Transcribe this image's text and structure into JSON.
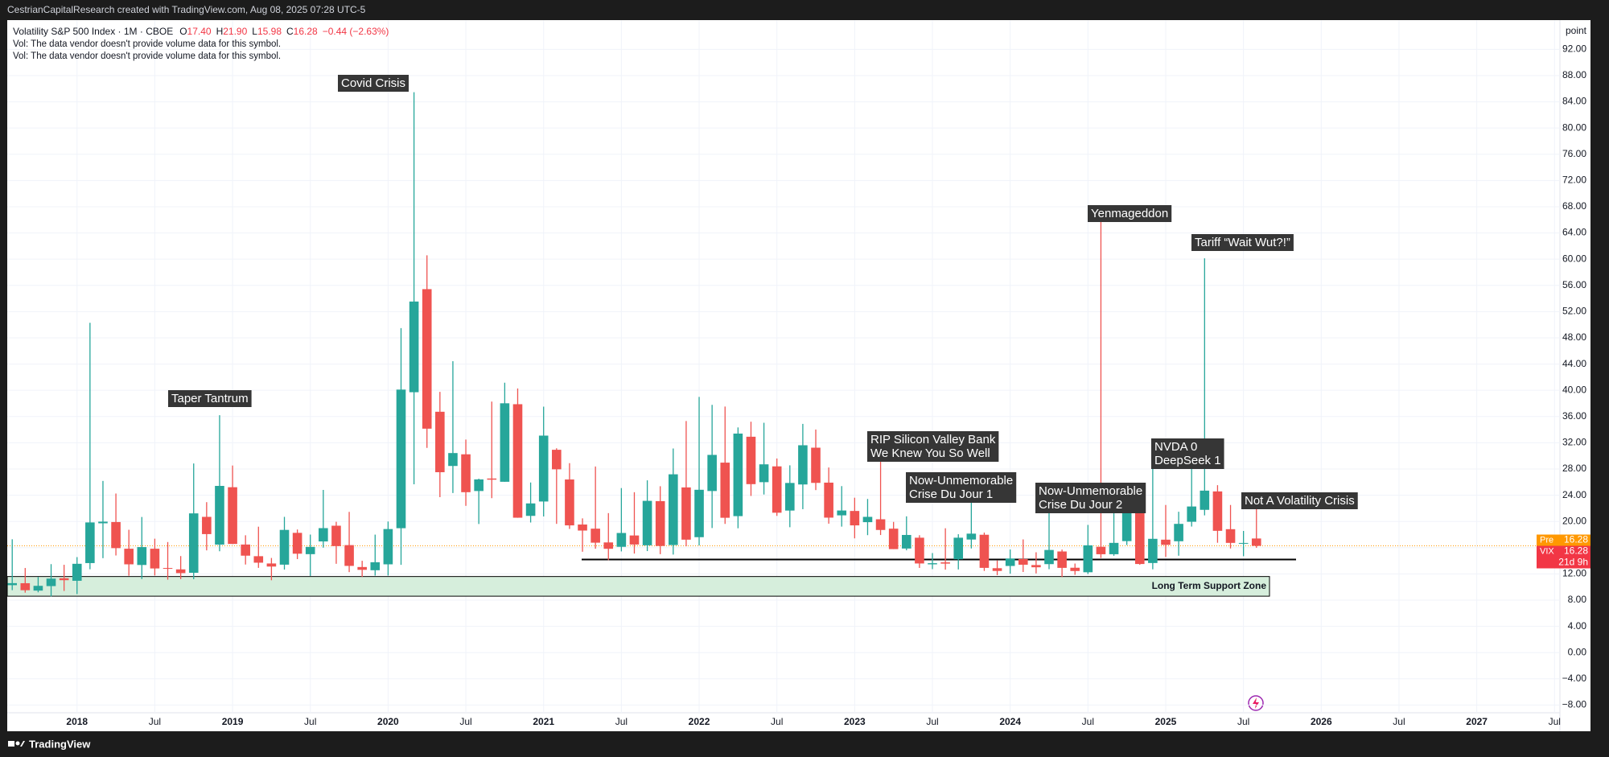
{
  "header": "CestrianCapitalResearch created with TradingView.com, Aug 08, 2025 07:28 UTC-5",
  "footer": "TradingView",
  "legend": {
    "symbol": "Volatility S&P 500 Index · 1M · CBOE",
    "items": [
      {
        "key": "O",
        "value": "17.40"
      },
      {
        "key": "H",
        "value": "21.90"
      },
      {
        "key": "L",
        "value": "15.98"
      },
      {
        "key": "C",
        "value": "16.28"
      }
    ],
    "change": "−0.44 (−2.63%)",
    "notes": [
      "Vol: The data vendor doesn't provide volume data for this symbol.",
      "Vol: The data vendor doesn't provide volume data for this symbol."
    ]
  },
  "chart_data": {
    "type": "candlestick",
    "y_unit": "point",
    "x": [
      "2017-08",
      "2017-09",
      "2017-10",
      "2017-11",
      "2017-12",
      "2018-01",
      "2018-02",
      "2018-03",
      "2018-04",
      "2018-05",
      "2018-06",
      "2018-07",
      "2018-08",
      "2018-09",
      "2018-10",
      "2018-11",
      "2018-12",
      "2019-01",
      "2019-02",
      "2019-03",
      "2019-04",
      "2019-05",
      "2019-06",
      "2019-07",
      "2019-08",
      "2019-09",
      "2019-10",
      "2019-11",
      "2019-12",
      "2020-01",
      "2020-02",
      "2020-03",
      "2020-04",
      "2020-05",
      "2020-06",
      "2020-07",
      "2020-08",
      "2020-09",
      "2020-10",
      "2020-11",
      "2020-12",
      "2021-01",
      "2021-02",
      "2021-03",
      "2021-04",
      "2021-05",
      "2021-06",
      "2021-07",
      "2021-08",
      "2021-09",
      "2021-10",
      "2021-11",
      "2021-12",
      "2022-01",
      "2022-02",
      "2022-03",
      "2022-04",
      "2022-05",
      "2022-06",
      "2022-07",
      "2022-08",
      "2022-09",
      "2022-10",
      "2022-11",
      "2022-12",
      "2023-01",
      "2023-02",
      "2023-03",
      "2023-04",
      "2023-05",
      "2023-06",
      "2023-07",
      "2023-08",
      "2023-09",
      "2023-10",
      "2023-11",
      "2023-12",
      "2024-01",
      "2024-02",
      "2024-03",
      "2024-04",
      "2024-05",
      "2024-06",
      "2024-07",
      "2024-08",
      "2024-09",
      "2024-10",
      "2024-11",
      "2024-12",
      "2025-01",
      "2025-02",
      "2025-03",
      "2025-04",
      "2025-05",
      "2025-06",
      "2025-07",
      "2025-08"
    ],
    "open": [
      10.28,
      10.58,
      9.45,
      10.14,
      11.34,
      10.95,
      13.65,
      19.72,
      19.91,
      15.84,
      13.36,
      15.84,
      12.9,
      12.69,
      12.17,
      20.7,
      16.47,
      25.22,
      16.48,
      14.7,
      13.59,
      13.41,
      18.26,
      15.01,
      16.95,
      19.35,
      16.39,
      13.05,
      12.56,
      13.46,
      18.97,
      39.71,
      55.43,
      36.73,
      28.46,
      30.24,
      24.64,
      26.55,
      26.05,
      37.88,
      20.85,
      23.04,
      30.93,
      26.4,
      19.53,
      18.9,
      16.8,
      16.13,
      17.86,
      16.36,
      23.1,
      16.4,
      25.19,
      17.6,
      24.64,
      28.97,
      20.81,
      32.92,
      25.99,
      28.4,
      21.66,
      25.64,
      31.25,
      25.92,
      20.93,
      21.6,
      19.89,
      20.33,
      18.9,
      15.87,
      17.52,
      13.46,
      13.76,
      14.23,
      17.24,
      17.97,
      12.87,
      13.21,
      14.27,
      13.35,
      13.49,
      15.42,
      12.94,
      12.25,
      16.14,
      15.0,
      17.0,
      23.2,
      13.66,
      17.22,
      16.98,
      19.95,
      21.77,
      24.58,
      18.82,
      16.68,
      17.4
    ],
    "high": [
      17.28,
      12.9,
      11.53,
      13.49,
      13.39,
      14.56,
      50.3,
      26.18,
      24.26,
      18.73,
      20.68,
      17.37,
      16.86,
      14.72,
      28.84,
      22.94,
      36.2,
      28.53,
      17.89,
      19.2,
      14.43,
      20.7,
      18.77,
      18.0,
      24.81,
      19.95,
      21.46,
      14.0,
      17.99,
      19.99,
      49.48,
      85.47,
      60.59,
      39.76,
      44.44,
      32.49,
      26.52,
      38.28,
      41.16,
      40.28,
      25.94,
      37.51,
      31.16,
      28.89,
      20.47,
      28.38,
      21.27,
      25.09,
      24.46,
      26.27,
      25.37,
      31.12,
      35.32,
      38.99,
      37.79,
      37.52,
      34.34,
      35.21,
      35.05,
      29.6,
      28.56,
      34.88,
      34.02,
      28.23,
      25.39,
      23.62,
      23.43,
      30.81,
      19.93,
      20.78,
      17.9,
      15.18,
      18.96,
      18.05,
      23.08,
      18.3,
      14.04,
      15.72,
      17.26,
      15.3,
      21.36,
      15.71,
      13.58,
      19.47,
      65.73,
      23.76,
      23.89,
      23.32,
      28.32,
      22.51,
      21.48,
      29.56,
      60.13,
      25.53,
      22.51,
      18.55,
      21.9
    ],
    "low": [
      9.52,
      9.14,
      9.19,
      8.56,
      9.4,
      8.92,
      12.71,
      14.4,
      14.81,
      11.72,
      11.22,
      11.76,
      11.12,
      11.21,
      11.19,
      15.59,
      15.45,
      16.55,
      13.43,
      12.92,
      11.03,
      12.66,
      14.26,
      11.69,
      16.0,
      13.54,
      12.27,
      11.55,
      11.74,
      11.75,
      13.38,
      25.67,
      31.22,
      23.7,
      24.33,
      22.38,
      19.61,
      23.55,
      26.05,
      20.56,
      19.84,
      20.76,
      19.63,
      18.86,
      15.38,
      15.84,
      14.1,
      15.43,
      15.1,
      15.48,
      15.01,
      14.95,
      16.21,
      16.34,
      19.0,
      19.63,
      18.96,
      23.89,
      24.11,
      20.85,
      19.12,
      21.87,
      24.78,
      19.66,
      19.21,
      17.42,
      17.91,
      17.93,
      15.78,
      15.6,
      12.91,
      12.73,
      12.65,
      12.68,
      15.88,
      12.45,
      11.81,
      12.03,
      12.29,
      12.07,
      12.72,
      11.52,
      11.86,
      11.99,
      14.42,
      14.76,
      16.4,
      13.4,
      12.7,
      14.58,
      14.77,
      19.22,
      20.93,
      16.75,
      15.88,
      14.7,
      15.98
    ],
    "close": [
      10.59,
      9.51,
      10.18,
      11.28,
      11.04,
      13.54,
      19.85,
      19.97,
      15.93,
      13.46,
      16.09,
      12.83,
      12.86,
      12.12,
      21.23,
      18.07,
      25.42,
      16.57,
      14.78,
      13.71,
      13.12,
      18.71,
      15.08,
      16.12,
      18.98,
      16.24,
      13.22,
      12.62,
      13.78,
      18.84,
      40.11,
      53.54,
      34.15,
      27.51,
      30.43,
      24.46,
      26.41,
      26.37,
      38.02,
      20.57,
      22.75,
      33.09,
      27.95,
      19.4,
      18.61,
      16.76,
      15.83,
      18.24,
      16.48,
      23.14,
      16.26,
      27.19,
      17.22,
      24.83,
      30.15,
      20.56,
      33.4,
      25.69,
      28.71,
      21.33,
      25.87,
      31.62,
      25.88,
      20.58,
      21.67,
      19.4,
      20.7,
      18.7,
      15.78,
      17.94,
      13.59,
      13.63,
      13.57,
      17.52,
      18.14,
      12.92,
      12.45,
      14.35,
      13.4,
      13.01,
      15.65,
      12.92,
      12.44,
      16.36,
      15.0,
      16.73,
      23.16,
      13.51,
      17.35,
      16.43,
      19.63,
      22.28,
      24.7,
      18.57,
      16.73,
      16.72,
      16.28
    ],
    "up_color": "#26a69a",
    "down_color": "#ef5350",
    "ylim": [
      -12,
      96.4
    ],
    "yticks": [
      {
        "value": -8,
        "label": "−8.00"
      },
      {
        "value": -4,
        "label": "−4.00"
      },
      {
        "value": 0,
        "label": "0.00"
      },
      {
        "value": 4,
        "label": "4.00"
      },
      {
        "value": 8,
        "label": "8.00"
      },
      {
        "value": 12,
        "label": "12.00"
      },
      {
        "value": 16,
        "label": "16.00"
      },
      {
        "value": 20,
        "label": "20.00"
      },
      {
        "value": 24,
        "label": "24.00"
      },
      {
        "value": 28,
        "label": "28.00"
      },
      {
        "value": 32,
        "label": "32.00"
      },
      {
        "value": 36,
        "label": "36.00"
      },
      {
        "value": 40,
        "label": "40.00"
      },
      {
        "value": 44,
        "label": "44.00"
      },
      {
        "value": 48,
        "label": "48.00"
      },
      {
        "value": 52,
        "label": "52.00"
      },
      {
        "value": 56,
        "label": "56.00"
      },
      {
        "value": 60,
        "label": "60.00"
      },
      {
        "value": 64,
        "label": "64.00"
      },
      {
        "value": 68,
        "label": "68.00"
      },
      {
        "value": 72,
        "label": "72.00"
      },
      {
        "value": 76,
        "label": "76.00"
      },
      {
        "value": 80,
        "label": "80.00"
      },
      {
        "value": 84,
        "label": "84.00"
      },
      {
        "value": 88,
        "label": "88.00"
      },
      {
        "value": 92,
        "label": "92.00"
      }
    ],
    "xticks": [
      {
        "value": "2018-01",
        "label": "2018"
      },
      {
        "value": "2018-07",
        "label": "Jul"
      },
      {
        "value": "2019-01",
        "label": "2019"
      },
      {
        "value": "2019-07",
        "label": "Jul"
      },
      {
        "value": "2020-01",
        "label": "2020"
      },
      {
        "value": "2020-07",
        "label": "Jul"
      },
      {
        "value": "2021-01",
        "label": "2021"
      },
      {
        "value": "2021-07",
        "label": "Jul"
      },
      {
        "value": "2022-01",
        "label": "2022"
      },
      {
        "value": "2022-07",
        "label": "Jul"
      },
      {
        "value": "2023-01",
        "label": "2023"
      },
      {
        "value": "2023-07",
        "label": "Jul"
      },
      {
        "value": "2024-01",
        "label": "2024"
      },
      {
        "value": "2024-07",
        "label": "Jul"
      },
      {
        "value": "2025-01",
        "label": "2025"
      },
      {
        "value": "2025-07",
        "label": "Jul"
      },
      {
        "value": "2026-01",
        "label": "2026"
      },
      {
        "value": "2026-07",
        "label": "Jul"
      },
      {
        "value": "2027-01",
        "label": "2027"
      },
      {
        "value": "2027-07",
        "label": "Jul"
      }
    ],
    "grid": true,
    "price_tags": {
      "pre": {
        "label": "Pre",
        "value": 16.28,
        "color": "#ff9800"
      },
      "last": {
        "label": "VIX",
        "value": 16.28,
        "countdown": "21d 9h",
        "color": "#f23645"
      }
    },
    "support_line": 14.2,
    "support_zone": {
      "low": 8.6,
      "high": 11.6,
      "label": "Long Term Support Zone",
      "color": "#d6eedc"
    },
    "annotations": [
      {
        "lines": [
          "Covid Crisis"
        ]
      },
      {
        "lines": [
          "Taper Tantrum"
        ]
      },
      {
        "lines": [
          "RIP Silicon Valley Bank",
          "We Knew You So Well"
        ]
      },
      {
        "lines": [
          "Now-Unmemorable",
          "Crise Du Jour 1"
        ]
      },
      {
        "lines": [
          "Now-Unmemorable",
          "Crise Du Jour 2"
        ]
      },
      {
        "lines": [
          "Yenmageddon"
        ]
      },
      {
        "lines": [
          "Tariff “Wait Wut?!”"
        ]
      },
      {
        "lines": [
          "NVDA 0",
          "DeepSeek 1"
        ]
      },
      {
        "lines": [
          "Not A Volatility Crisis"
        ]
      }
    ]
  }
}
